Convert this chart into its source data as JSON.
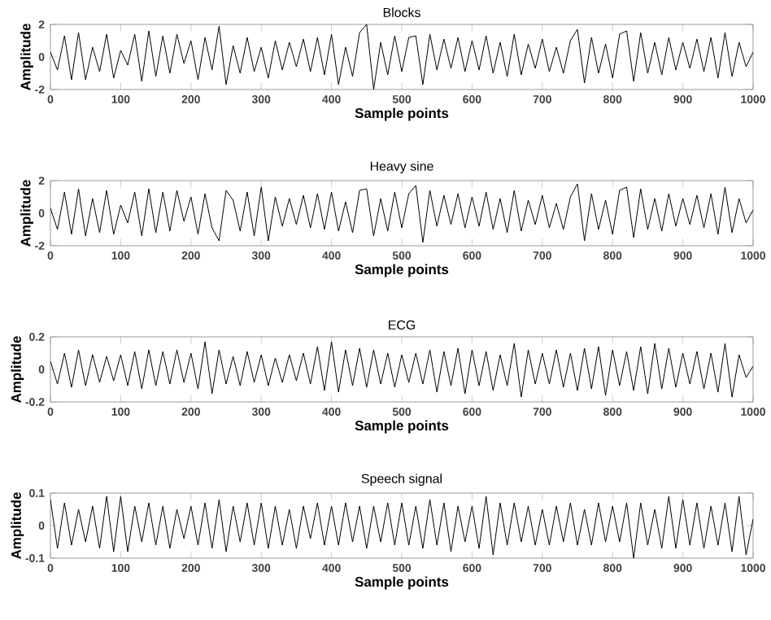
{
  "chart_data": [
    {
      "type": "line",
      "title": "Blocks",
      "xlabel": "Sample points",
      "ylabel": "Amplitude",
      "color": "#000000",
      "xlim": [
        0,
        1000
      ],
      "xticks": [
        0,
        100,
        200,
        300,
        400,
        500,
        600,
        700,
        800,
        900,
        1000
      ],
      "ylim": [
        -2,
        2
      ],
      "yticks": [
        -2,
        0,
        2
      ],
      "x": [
        0,
        10,
        20,
        30,
        40,
        50,
        60,
        70,
        80,
        90,
        100,
        110,
        120,
        130,
        140,
        150,
        160,
        170,
        180,
        190,
        200,
        210,
        220,
        230,
        240,
        250,
        260,
        270,
        280,
        290,
        300,
        310,
        320,
        330,
        340,
        350,
        360,
        370,
        380,
        390,
        400,
        410,
        420,
        430,
        440,
        450,
        460,
        470,
        480,
        490,
        500,
        510,
        520,
        530,
        540,
        550,
        560,
        570,
        580,
        590,
        600,
        610,
        620,
        630,
        640,
        650,
        660,
        670,
        680,
        690,
        700,
        710,
        720,
        730,
        740,
        750,
        760,
        770,
        780,
        790,
        800,
        810,
        820,
        830,
        840,
        850,
        860,
        870,
        880,
        890,
        900,
        910,
        920,
        930,
        940,
        950,
        960,
        970,
        980,
        990,
        1000
      ],
      "values": [
        0.3,
        -0.8,
        1.3,
        -1.4,
        1.5,
        -1.4,
        0.6,
        -0.9,
        1.4,
        -1.3,
        0.4,
        -0.5,
        1.4,
        -1.5,
        1.6,
        -1.2,
        1.3,
        -1.0,
        1.4,
        -0.4,
        1.0,
        -1.4,
        1.2,
        -0.8,
        1.9,
        -1.7,
        0.7,
        -1.0,
        1.2,
        -0.9,
        0.6,
        -1.3,
        1.0,
        -0.8,
        0.9,
        -0.6,
        1.1,
        -0.9,
        1.2,
        -1.1,
        1.4,
        -1.7,
        0.6,
        -1.2,
        1.5,
        2.0,
        -2.0,
        0.9,
        -1.1,
        1.3,
        -0.9,
        1.2,
        1.3,
        -1.7,
        1.4,
        -0.8,
        1.1,
        -0.7,
        1.2,
        -0.9,
        1.0,
        -0.8,
        1.3,
        -1.0,
        0.9,
        -1.2,
        1.4,
        -1.1,
        0.8,
        -0.7,
        1.1,
        -0.9,
        0.6,
        -1.0,
        1.0,
        1.7,
        -1.6,
        1.2,
        -1.0,
        0.8,
        -1.3,
        1.4,
        1.6,
        -1.5,
        1.5,
        -1.0,
        0.9,
        -1.1,
        1.2,
        -0.8,
        0.9,
        -0.7,
        1.1,
        -0.9,
        1.2,
        -1.3,
        1.5,
        -1.2,
        0.9,
        -0.6,
        0.3
      ]
    },
    {
      "type": "line",
      "title": "Heavy sine",
      "xlabel": "Sample points",
      "ylabel": "Amplitude",
      "color": "#000000",
      "xlim": [
        0,
        1000
      ],
      "xticks": [
        0,
        100,
        200,
        300,
        400,
        500,
        600,
        700,
        800,
        900,
        1000
      ],
      "ylim": [
        -2,
        2
      ],
      "yticks": [
        -2,
        0,
        2
      ],
      "x": [
        0,
        10,
        20,
        30,
        40,
        50,
        60,
        70,
        80,
        90,
        100,
        110,
        120,
        130,
        140,
        150,
        160,
        170,
        180,
        190,
        200,
        210,
        220,
        230,
        240,
        250,
        260,
        270,
        280,
        290,
        300,
        310,
        320,
        330,
        340,
        350,
        360,
        370,
        380,
        390,
        400,
        410,
        420,
        430,
        440,
        450,
        460,
        470,
        480,
        490,
        500,
        510,
        520,
        530,
        540,
        550,
        560,
        570,
        580,
        590,
        600,
        610,
        620,
        630,
        640,
        650,
        660,
        670,
        680,
        690,
        700,
        710,
        720,
        730,
        740,
        750,
        760,
        770,
        780,
        790,
        800,
        810,
        820,
        830,
        840,
        850,
        860,
        870,
        880,
        890,
        900,
        910,
        920,
        930,
        940,
        950,
        960,
        970,
        980,
        990,
        1000
      ],
      "values": [
        0.3,
        -1.0,
        1.3,
        -1.3,
        1.5,
        -1.4,
        0.9,
        -1.2,
        1.4,
        -1.3,
        0.5,
        -0.6,
        1.3,
        -1.4,
        1.5,
        -1.2,
        1.3,
        -1.1,
        1.4,
        -0.5,
        1.0,
        -1.3,
        1.2,
        -0.9,
        -1.7,
        1.4,
        0.8,
        -1.1,
        1.3,
        -1.4,
        1.6,
        -1.7,
        1.0,
        -0.8,
        0.9,
        -0.7,
        1.1,
        -0.9,
        1.2,
        -1.0,
        1.3,
        -1.1,
        0.7,
        -1.2,
        1.4,
        1.5,
        -1.4,
        0.9,
        -1.1,
        1.3,
        -0.9,
        1.2,
        1.7,
        -1.8,
        1.4,
        -0.8,
        1.1,
        -0.7,
        1.2,
        -0.9,
        1.0,
        -0.8,
        1.3,
        -1.0,
        0.9,
        -1.2,
        1.4,
        -1.1,
        0.8,
        -0.7,
        1.1,
        -0.9,
        0.6,
        -1.0,
        1.0,
        1.8,
        -1.7,
        1.2,
        -1.0,
        0.8,
        -1.3,
        1.4,
        1.6,
        -1.5,
        1.5,
        -1.0,
        0.9,
        -1.1,
        1.2,
        -0.8,
        0.9,
        -0.7,
        1.1,
        -0.9,
        1.2,
        -1.3,
        1.6,
        -1.2,
        0.9,
        -0.6,
        0.2
      ]
    },
    {
      "type": "line",
      "title": "ECG",
      "xlabel": "Sample points",
      "ylabel": "Amplitude",
      "color": "#000000",
      "xlim": [
        0,
        1000
      ],
      "xticks": [
        0,
        100,
        200,
        300,
        400,
        500,
        600,
        700,
        800,
        900,
        1000
      ],
      "ylim": [
        -0.2,
        0.2
      ],
      "yticks": [
        -0.2,
        0,
        0.2
      ],
      "x": [
        0,
        10,
        20,
        30,
        40,
        50,
        60,
        70,
        80,
        90,
        100,
        110,
        120,
        130,
        140,
        150,
        160,
        170,
        180,
        190,
        200,
        210,
        220,
        230,
        240,
        250,
        260,
        270,
        280,
        290,
        300,
        310,
        320,
        330,
        340,
        350,
        360,
        370,
        380,
        390,
        400,
        410,
        420,
        430,
        440,
        450,
        460,
        470,
        480,
        490,
        500,
        510,
        520,
        530,
        540,
        550,
        560,
        570,
        580,
        590,
        600,
        610,
        620,
        630,
        640,
        650,
        660,
        670,
        680,
        690,
        700,
        710,
        720,
        730,
        740,
        750,
        760,
        770,
        780,
        790,
        800,
        810,
        820,
        830,
        840,
        850,
        860,
        870,
        880,
        890,
        900,
        910,
        920,
        930,
        940,
        950,
        960,
        970,
        980,
        990,
        1000
      ],
      "values": [
        0.05,
        -0.09,
        0.1,
        -0.11,
        0.12,
        -0.1,
        0.09,
        -0.08,
        0.08,
        -0.07,
        0.09,
        -0.1,
        0.11,
        -0.12,
        0.12,
        -0.1,
        0.11,
        -0.09,
        0.12,
        -0.08,
        0.1,
        -0.12,
        0.17,
        -0.15,
        0.12,
        -0.09,
        0.08,
        -0.1,
        0.11,
        -0.08,
        0.09,
        -0.1,
        0.07,
        -0.08,
        0.09,
        -0.07,
        0.1,
        -0.09,
        0.14,
        -0.13,
        0.17,
        -0.14,
        0.12,
        -0.1,
        0.13,
        -0.11,
        0.12,
        -0.09,
        0.1,
        -0.11,
        0.09,
        -0.08,
        0.1,
        -0.09,
        0.12,
        -0.14,
        0.11,
        -0.1,
        0.13,
        -0.15,
        0.12,
        -0.1,
        0.11,
        -0.13,
        0.09,
        -0.1,
        0.16,
        -0.17,
        0.12,
        -0.09,
        0.1,
        -0.09,
        0.12,
        -0.11,
        0.1,
        -0.13,
        0.13,
        -0.12,
        0.14,
        -0.16,
        0.12,
        -0.1,
        0.11,
        -0.13,
        0.14,
        -0.15,
        0.16,
        -0.12,
        0.13,
        -0.11,
        0.1,
        -0.09,
        0.11,
        -0.12,
        0.1,
        -0.14,
        0.16,
        -0.17,
        0.09,
        -0.05,
        0.02
      ]
    },
    {
      "type": "line",
      "title": "Speech signal",
      "xlabel": "Sample points",
      "ylabel": "Amplitude",
      "color": "#000000",
      "xlim": [
        0,
        1000
      ],
      "xticks": [
        0,
        100,
        200,
        300,
        400,
        500,
        600,
        700,
        800,
        900,
        1000
      ],
      "ylim": [
        -0.1,
        0.1
      ],
      "yticks": [
        -0.1,
        0,
        0.1
      ],
      "x": [
        0,
        10,
        20,
        30,
        40,
        50,
        60,
        70,
        80,
        90,
        100,
        110,
        120,
        130,
        140,
        150,
        160,
        170,
        180,
        190,
        200,
        210,
        220,
        230,
        240,
        250,
        260,
        270,
        280,
        290,
        300,
        310,
        320,
        330,
        340,
        350,
        360,
        370,
        380,
        390,
        400,
        410,
        420,
        430,
        440,
        450,
        460,
        470,
        480,
        490,
        500,
        510,
        520,
        530,
        540,
        550,
        560,
        570,
        580,
        590,
        600,
        610,
        620,
        630,
        640,
        650,
        660,
        670,
        680,
        690,
        700,
        710,
        720,
        730,
        740,
        750,
        760,
        770,
        780,
        790,
        800,
        810,
        820,
        830,
        840,
        850,
        860,
        870,
        880,
        890,
        900,
        910,
        920,
        930,
        940,
        950,
        960,
        970,
        980,
        990,
        1000
      ],
      "values": [
        0.08,
        -0.07,
        0.07,
        -0.06,
        0.05,
        -0.05,
        0.06,
        -0.07,
        0.09,
        -0.08,
        0.09,
        -0.08,
        0.06,
        -0.05,
        0.07,
        -0.06,
        0.06,
        -0.07,
        0.05,
        -0.04,
        0.06,
        -0.06,
        0.07,
        -0.07,
        0.08,
        -0.08,
        0.06,
        -0.05,
        0.07,
        -0.06,
        0.07,
        -0.07,
        0.06,
        -0.06,
        0.05,
        -0.07,
        0.06,
        -0.04,
        0.07,
        -0.06,
        0.06,
        -0.06,
        0.07,
        -0.05,
        0.06,
        -0.07,
        0.06,
        -0.05,
        0.07,
        -0.06,
        0.07,
        -0.06,
        0.06,
        -0.07,
        0.08,
        -0.06,
        0.07,
        -0.08,
        0.06,
        -0.05,
        0.06,
        -0.07,
        0.09,
        -0.09,
        0.07,
        -0.06,
        0.07,
        -0.05,
        0.06,
        -0.06,
        0.05,
        -0.06,
        0.06,
        -0.05,
        0.07,
        -0.06,
        0.05,
        -0.06,
        0.07,
        -0.05,
        0.06,
        -0.05,
        0.07,
        -0.1,
        0.07,
        -0.06,
        0.05,
        -0.07,
        0.09,
        -0.07,
        0.08,
        -0.06,
        0.07,
        -0.07,
        0.06,
        -0.06,
        0.07,
        -0.08,
        0.09,
        -0.09,
        0.02
      ]
    }
  ]
}
